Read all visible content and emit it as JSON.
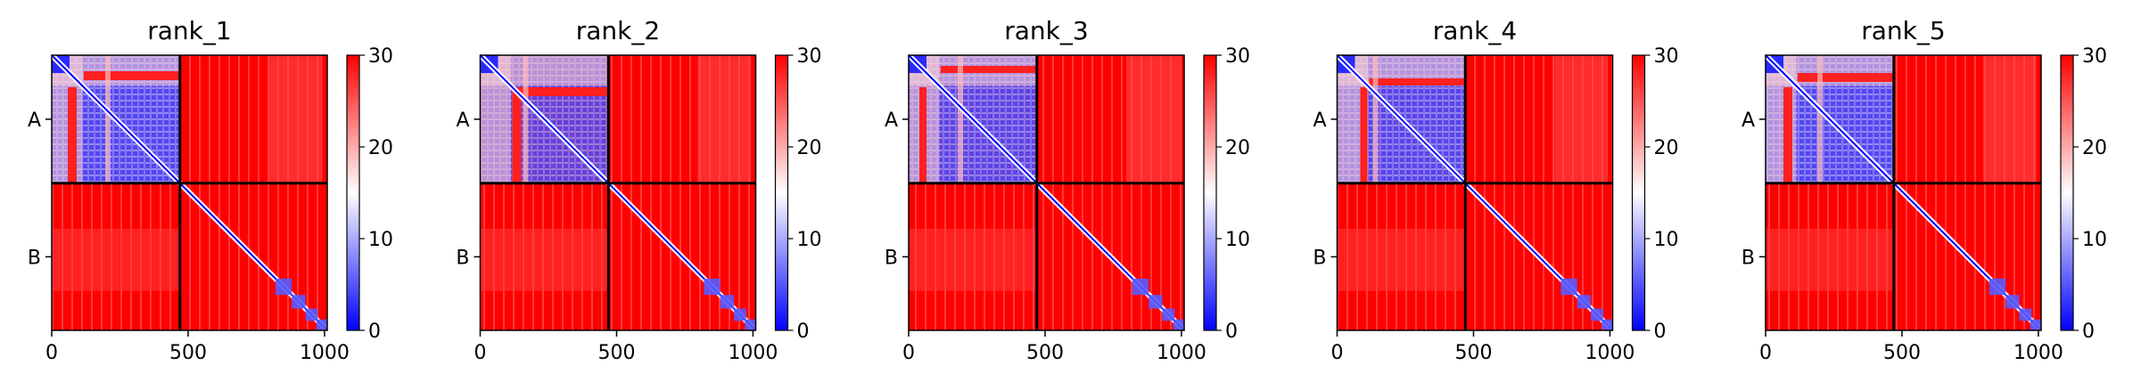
{
  "figure": {
    "panel_titles": [
      "rank_1",
      "rank_2",
      "rank_3",
      "rank_4",
      "rank_5"
    ]
  },
  "colormap": {
    "name": "bwr",
    "low_color": "#0000ff",
    "mid_color": "#ffffff",
    "high_color": "#ff0000",
    "vmin": 0,
    "vmax": 30
  },
  "chart_data": [
    {
      "type": "heatmap",
      "title": "rank_1",
      "x_ticks": [
        0,
        500,
        1000
      ],
      "xlim": [
        0,
        1010
      ],
      "y_tick_labels": [
        "A",
        "B"
      ],
      "segments": [
        {
          "name": "A",
          "start": 0,
          "end": 470
        },
        {
          "name": "B",
          "start": 470,
          "end": 1010
        }
      ],
      "colorbar": {
        "ticks": [
          0,
          10,
          20,
          30
        ],
        "range": [
          0,
          30
        ]
      }
    },
    {
      "type": "heatmap",
      "title": "rank_2",
      "x_ticks": [
        0,
        500,
        1000
      ],
      "xlim": [
        0,
        1010
      ],
      "y_tick_labels": [
        "A",
        "B"
      ],
      "segments": [
        {
          "name": "A",
          "start": 0,
          "end": 470
        },
        {
          "name": "B",
          "start": 470,
          "end": 1010
        }
      ],
      "colorbar": {
        "ticks": [
          0,
          10,
          20,
          30
        ],
        "range": [
          0,
          30
        ]
      }
    },
    {
      "type": "heatmap",
      "title": "rank_3",
      "x_ticks": [
        0,
        500,
        1000
      ],
      "xlim": [
        0,
        1010
      ],
      "y_tick_labels": [
        "A",
        "B"
      ],
      "segments": [
        {
          "name": "A",
          "start": 0,
          "end": 470
        },
        {
          "name": "B",
          "start": 470,
          "end": 1010
        }
      ],
      "colorbar": {
        "ticks": [
          0,
          10,
          20,
          30
        ],
        "range": [
          0,
          30
        ]
      }
    },
    {
      "type": "heatmap",
      "title": "rank_4",
      "x_ticks": [
        0,
        500,
        1000
      ],
      "xlim": [
        0,
        1010
      ],
      "y_tick_labels": [
        "A",
        "B"
      ],
      "segments": [
        {
          "name": "A",
          "start": 0,
          "end": 470
        },
        {
          "name": "B",
          "start": 470,
          "end": 1010
        }
      ],
      "colorbar": {
        "ticks": [
          0,
          10,
          20,
          30
        ],
        "range": [
          0,
          30
        ]
      }
    },
    {
      "type": "heatmap",
      "title": "rank_5",
      "x_ticks": [
        0,
        500,
        1000
      ],
      "xlim": [
        0,
        1010
      ],
      "y_tick_labels": [
        "A",
        "B"
      ],
      "segments": [
        {
          "name": "A",
          "start": 0,
          "end": 470
        },
        {
          "name": "B",
          "start": 470,
          "end": 1010
        }
      ],
      "colorbar": {
        "ticks": [
          0,
          10,
          20,
          30
        ],
        "range": [
          0,
          30
        ]
      }
    }
  ]
}
